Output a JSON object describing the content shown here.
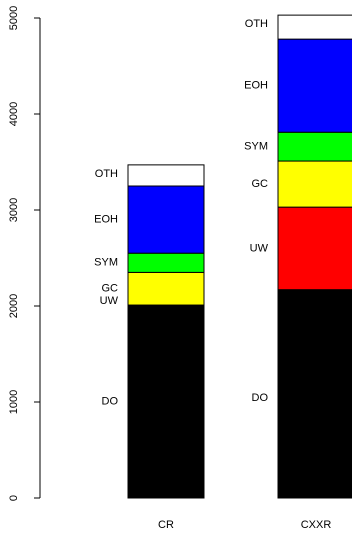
{
  "chart_data": {
    "type": "bar",
    "stacked": true,
    "ylim": [
      0,
      5000
    ],
    "y_ticks": [
      "0",
      "1000",
      "2000",
      "3000",
      "4000",
      "5000"
    ],
    "categories": [
      "CR",
      "CXXR"
    ],
    "segment_order": [
      "DO",
      "UW",
      "GC",
      "SYM",
      "EOH",
      "OTH"
    ],
    "colors": {
      "DO": "#000000",
      "UW": "#ff0000",
      "GC": "#ffff00",
      "SYM": "#00ff00",
      "EOH": "#0000ff",
      "OTH": "#ffffff"
    },
    "series": [
      {
        "name": "DO",
        "values": [
          2010,
          2170
        ]
      },
      {
        "name": "UW",
        "values": [
          0,
          860
        ]
      },
      {
        "name": "GC",
        "values": [
          340,
          480
        ]
      },
      {
        "name": "SYM",
        "values": [
          200,
          300
        ]
      },
      {
        "name": "EOH",
        "values": [
          700,
          970
        ]
      },
      {
        "name": "OTH",
        "values": [
          220,
          250
        ]
      }
    ],
    "grid": false,
    "legend": "none"
  }
}
